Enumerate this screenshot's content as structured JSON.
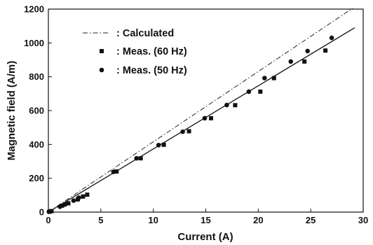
{
  "chart_data": {
    "type": "scatter",
    "title": "",
    "xlabel": "Current (A)",
    "ylabel": "Magnetic field (A/m)",
    "xlim": [
      0,
      30
    ],
    "ylim": [
      0,
      1200
    ],
    "xticks": [
      0,
      5,
      10,
      15,
      20,
      25,
      30
    ],
    "yticks": [
      0,
      200,
      400,
      600,
      800,
      1000,
      1200
    ],
    "grid": false,
    "legend_position": "top-left",
    "series": [
      {
        "name": ": Calculated",
        "kind": "line",
        "style": "dash-dot",
        "color": "#222222",
        "x": [
          0,
          29
        ],
        "y": [
          0,
          1205
        ]
      },
      {
        "name": ": Meas. (60 Hz)",
        "kind": "scatter",
        "marker": "square",
        "color": "#111111",
        "x": [
          0.1,
          0.3,
          1.3,
          1.9,
          2.8,
          3.3,
          3.7,
          6.5,
          8.8,
          11.0,
          13.4,
          15.5,
          17.8,
          20.2,
          21.5,
          24.4,
          26.4
        ],
        "y": [
          3,
          6,
          38,
          52,
          75,
          92,
          103,
          240,
          318,
          398,
          478,
          555,
          632,
          712,
          792,
          890,
          955
        ]
      },
      {
        "name": ": Meas. (50 Hz)",
        "kind": "scatter",
        "marker": "circle",
        "color": "#111111",
        "x": [
          0.05,
          0.25,
          1.1,
          1.6,
          2.4,
          2.9,
          6.2,
          8.4,
          10.5,
          12.8,
          14.9,
          17.0,
          19.1,
          20.6,
          23.1,
          24.7,
          27.0
        ],
        "y": [
          2,
          5,
          32,
          45,
          68,
          85,
          238,
          318,
          396,
          475,
          555,
          633,
          712,
          792,
          890,
          952,
          1030
        ]
      },
      {
        "name": "",
        "kind": "line",
        "style": "solid",
        "color": "#111111",
        "x": [
          0,
          29.2
        ],
        "y": [
          0,
          1090
        ]
      }
    ]
  }
}
